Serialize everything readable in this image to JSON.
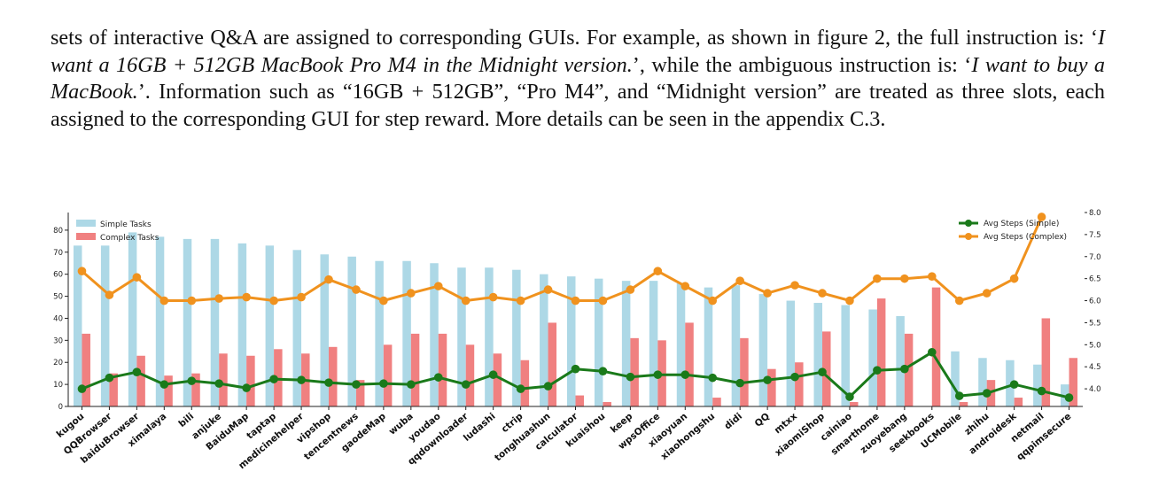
{
  "paragraph": {
    "t1": "sets of interactive Q&A are assigned to corresponding GUIs. For example, as shown in figure 2, the full instruction is: ‘",
    "i1": "I want a 16GB + 512GB MacBook Pro M4 in the Midnight version.",
    "t2": "’, while the ambiguous instruction is: ‘",
    "i2": "I want to buy a MacBook.",
    "t3": "’. Information such as “16GB + 512GB”, “Pro M4”, and “Midnight version” are treated as three slots, each assigned to the corresponding GUI for step reward. More details can be seen in the appendix C.3."
  },
  "chart_data": {
    "type": "bar",
    "categories": [
      "kugou",
      "QQBrowser",
      "baiduBrowser",
      "ximalaya",
      "bili",
      "anjuke",
      "BaiduMap",
      "taptap",
      "medicinehelper",
      "vipshop",
      "tencentnews",
      "gaodeMap",
      "wuba",
      "youdao",
      "qqdownloader",
      "ludashi",
      "ctrip",
      "tonghuashun",
      "calculator",
      "kuaishou",
      "keep",
      "wpsOffice",
      "xiaoyuan",
      "xiaohongshu",
      "didi",
      "QQ",
      "mtxx",
      "xiaomiShop",
      "cainiao",
      "smarthome",
      "zuoyebang",
      "seekbooks",
      "UCMobile",
      "zhihu",
      "androidesk",
      "netmail",
      "qqpimsecure"
    ],
    "series": [
      {
        "name": "Simple Tasks",
        "type": "bar",
        "axis": "left",
        "color": "#add8e6",
        "values": [
          73,
          73,
          79,
          77,
          76,
          76,
          74,
          73,
          71,
          69,
          68,
          66,
          66,
          65,
          63,
          63,
          62,
          60,
          59,
          58,
          57,
          57,
          56,
          54,
          55,
          51,
          48,
          47,
          46,
          44,
          41,
          0,
          25,
          22,
          21,
          19,
          10
        ]
      },
      {
        "name": "Complex Tasks",
        "type": "bar",
        "axis": "left",
        "color": "#f08080",
        "values": [
          33,
          15,
          23,
          14,
          15,
          24,
          23,
          26,
          24,
          27,
          12,
          28,
          33,
          33,
          28,
          24,
          21,
          38,
          5,
          2,
          31,
          30,
          38,
          4,
          31,
          17,
          20,
          34,
          2,
          49,
          33,
          54,
          2,
          12,
          4,
          40,
          22
        ]
      },
      {
        "name": "Avg Steps (Simple)",
        "type": "line",
        "axis": "right",
        "color": "#1a7a1a",
        "values": [
          4.0,
          4.25,
          4.38,
          4.1,
          4.18,
          4.12,
          4.02,
          4.22,
          4.2,
          4.14,
          4.1,
          4.12,
          4.1,
          4.26,
          4.1,
          4.32,
          4.0,
          4.06,
          4.45,
          4.4,
          4.27,
          4.32,
          4.32,
          4.25,
          4.13,
          4.2,
          4.27,
          4.38,
          3.82,
          4.42,
          4.45,
          4.83,
          3.84,
          3.9,
          4.1,
          3.95,
          3.8
        ]
      },
      {
        "name": "Avg Steps (Complex)",
        "type": "line",
        "axis": "right",
        "color": "#f0921e",
        "values": [
          6.67,
          6.13,
          6.53,
          6.0,
          6.0,
          6.05,
          6.08,
          6.0,
          6.08,
          6.48,
          6.25,
          6.0,
          6.17,
          6.33,
          6.0,
          6.08,
          6.0,
          6.25,
          6.0,
          6.0,
          6.25,
          6.67,
          6.33,
          6.0,
          6.45,
          6.17,
          6.35,
          6.17,
          6.0,
          6.5,
          6.5,
          6.55,
          6.0,
          6.17,
          6.5,
          7.9,
          null
        ]
      }
    ],
    "yticks_left": [
      "0",
      "10",
      "20",
      "30",
      "40",
      "50",
      "60",
      "70",
      "80"
    ],
    "yticks_right": [
      "4.0",
      "4.5",
      "5.0",
      "5.5",
      "6.0",
      "6.5",
      "7.0",
      "7.5",
      "8.0"
    ],
    "ylim_left": [
      0,
      88
    ],
    "ylim_right": [
      3.6,
      8.0
    ],
    "legend_left": [
      "Simple Tasks",
      "Complex Tasks"
    ],
    "legend_right": [
      "Avg Steps (Simple)",
      "Avg Steps (Complex)"
    ],
    "legend_left_placement": "top-left",
    "legend_right_placement": "top-right",
    "grid": false
  }
}
